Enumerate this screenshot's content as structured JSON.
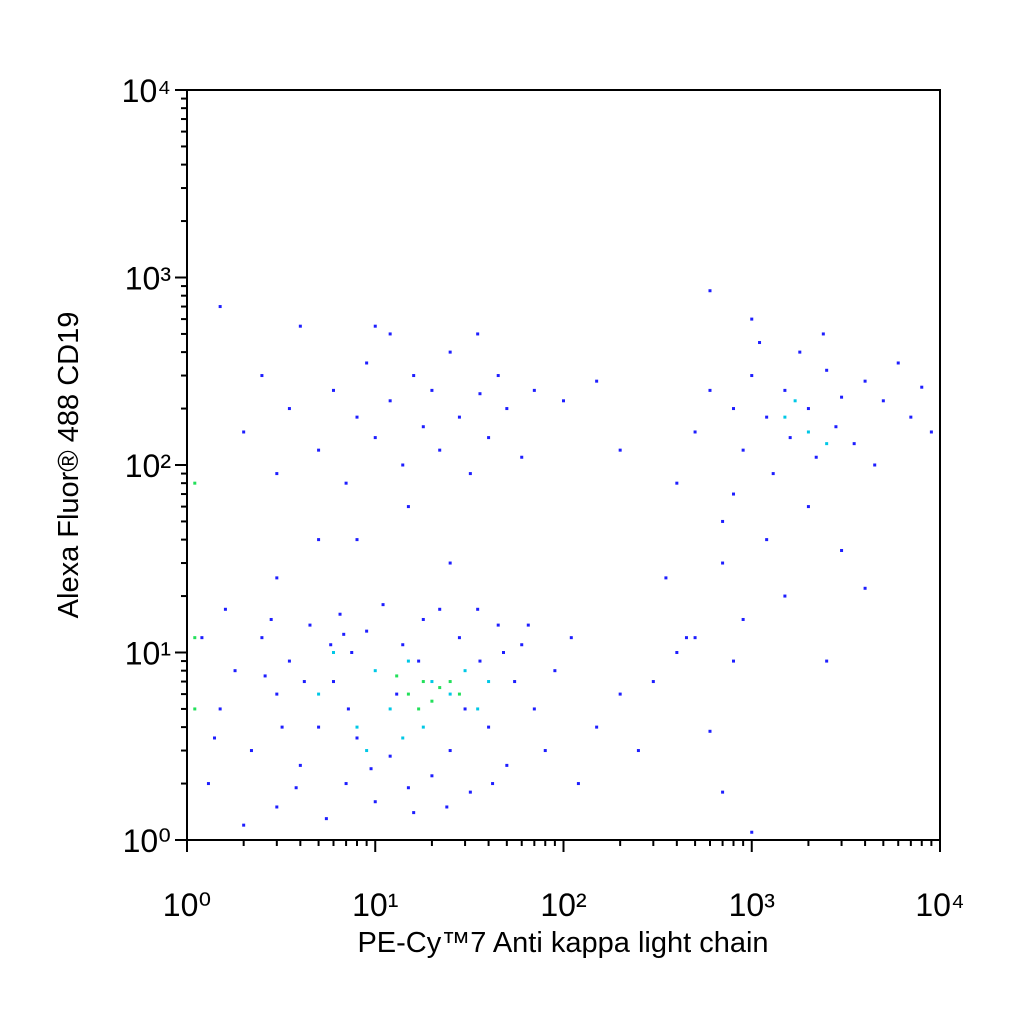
{
  "chart_data": {
    "type": "scatter",
    "xlabel": "PE-Cy™7 Anti kappa light chain",
    "ylabel": "Alexa Fluor® 488 CD19",
    "xscale": "log",
    "yscale": "log",
    "xlim": [
      1,
      10000
    ],
    "ylim": [
      1,
      10000
    ],
    "xticks": [
      {
        "value": 1,
        "label": "10⁰"
      },
      {
        "value": 10,
        "label": "10¹"
      },
      {
        "value": 100,
        "label": "10²"
      },
      {
        "value": 1000,
        "label": "10³"
      },
      {
        "value": 10000,
        "label": "10⁴"
      }
    ],
    "yticks": [
      {
        "value": 1,
        "label": "10⁰"
      },
      {
        "value": 10,
        "label": "10¹"
      },
      {
        "value": 100,
        "label": "10²"
      },
      {
        "value": 1000,
        "label": "10³"
      },
      {
        "value": 10000,
        "label": "10⁴"
      }
    ],
    "minor_ticks": [
      2,
      3,
      4,
      5,
      6,
      7,
      8,
      9,
      20,
      30,
      40,
      50,
      60,
      70,
      80,
      90,
      200,
      300,
      400,
      500,
      600,
      700,
      800,
      900,
      2000,
      3000,
      4000,
      5000,
      6000,
      7000,
      8000,
      9000
    ],
    "series": [
      {
        "color": "#1e1eff",
        "x": [
          1.3,
          1.5,
          1.8,
          2.2,
          2.5,
          3,
          3,
          3.5,
          4,
          4.5,
          5,
          5.5,
          6,
          6.5,
          7,
          7.5,
          8,
          9,
          10,
          11,
          12,
          14,
          16,
          18,
          20,
          22,
          25,
          28,
          32,
          36,
          40,
          45,
          50,
          55,
          60,
          70,
          80,
          90,
          1.2,
          1.4,
          2,
          2.8,
          3.2,
          3.8,
          4.2,
          5.8,
          7.2,
          9.5,
          13,
          15,
          17,
          24,
          30,
          35,
          42,
          48,
          65,
          1.6,
          2.6,
          6.8,
          120,
          150,
          200,
          110,
          250,
          700,
          1000,
          600,
          400,
          300,
          500,
          800,
          2,
          2.5,
          3,
          3.5,
          4,
          5,
          6,
          7,
          8,
          9,
          10,
          12,
          14,
          16,
          18,
          20,
          22,
          25,
          28,
          32,
          36,
          40,
          45,
          50,
          60,
          70,
          8,
          15,
          25,
          10,
          5,
          3,
          12,
          35,
          100,
          150,
          200,
          1.5,
          400,
          500,
          600,
          700,
          800,
          900,
          1000,
          1200,
          1300,
          1500,
          1600,
          1800,
          2000,
          2200,
          2500,
          2800,
          3000,
          3500,
          4000,
          4500,
          5000,
          6000,
          7000,
          8000,
          9000,
          600,
          1000,
          700,
          900,
          1200,
          1500,
          2000,
          3000,
          4000,
          2500,
          450,
          350,
          800,
          1100,
          2400
        ],
        "values": [
          2,
          5,
          8,
          3,
          12,
          1.5,
          6,
          9,
          2.5,
          14,
          4,
          1.3,
          7,
          16,
          2,
          10,
          3.5,
          13,
          1.6,
          18,
          2.8,
          11,
          1.4,
          15,
          2.2,
          17,
          3,
          12,
          1.8,
          9,
          4,
          14,
          2.5,
          7,
          11,
          5,
          3,
          8,
          12,
          3.5,
          1.2,
          15,
          4,
          1.9,
          7,
          11,
          5,
          2.4,
          6,
          1.9,
          9,
          1.5,
          5,
          17,
          2,
          10,
          14,
          17,
          7.5,
          12.5,
          2,
          4,
          6,
          12,
          3,
          1.8,
          1.1,
          3.8,
          10,
          7,
          12,
          9,
          150,
          300,
          90,
          200,
          550,
          120,
          250,
          80,
          180,
          350,
          140,
          220,
          100,
          300,
          160,
          250,
          120,
          400,
          180,
          90,
          240,
          140,
          300,
          200,
          110,
          250,
          40,
          60,
          30,
          550,
          40,
          25,
          500,
          500,
          220,
          280,
          120,
          700,
          80,
          150,
          250,
          50,
          200,
          120,
          300,
          180,
          90,
          250,
          140,
          400,
          200,
          110,
          320,
          160,
          230,
          130,
          280,
          100,
          220,
          350,
          180,
          260,
          150,
          850,
          600,
          30,
          15,
          40,
          20,
          60,
          35,
          22,
          9,
          12,
          25,
          70,
          450,
          500
        ]
      },
      {
        "color": "#00c8e6",
        "x": [
          5,
          8,
          10,
          12,
          15,
          18,
          20,
          25,
          30,
          35,
          6,
          9,
          1500,
          2000,
          1700,
          2500,
          40,
          14
        ],
        "values": [
          6,
          4,
          8,
          5,
          9,
          4,
          7,
          6,
          8,
          5,
          10,
          3,
          180,
          150,
          220,
          130,
          7,
          3.5
        ]
      },
      {
        "color": "#22e05a",
        "x": [
          15,
          18,
          20,
          22,
          25,
          17,
          28,
          13,
          1.1,
          1.1,
          1.1
        ],
        "values": [
          6,
          7,
          5.5,
          6.5,
          7,
          5,
          6,
          7.5,
          5,
          12,
          80
        ]
      }
    ]
  }
}
